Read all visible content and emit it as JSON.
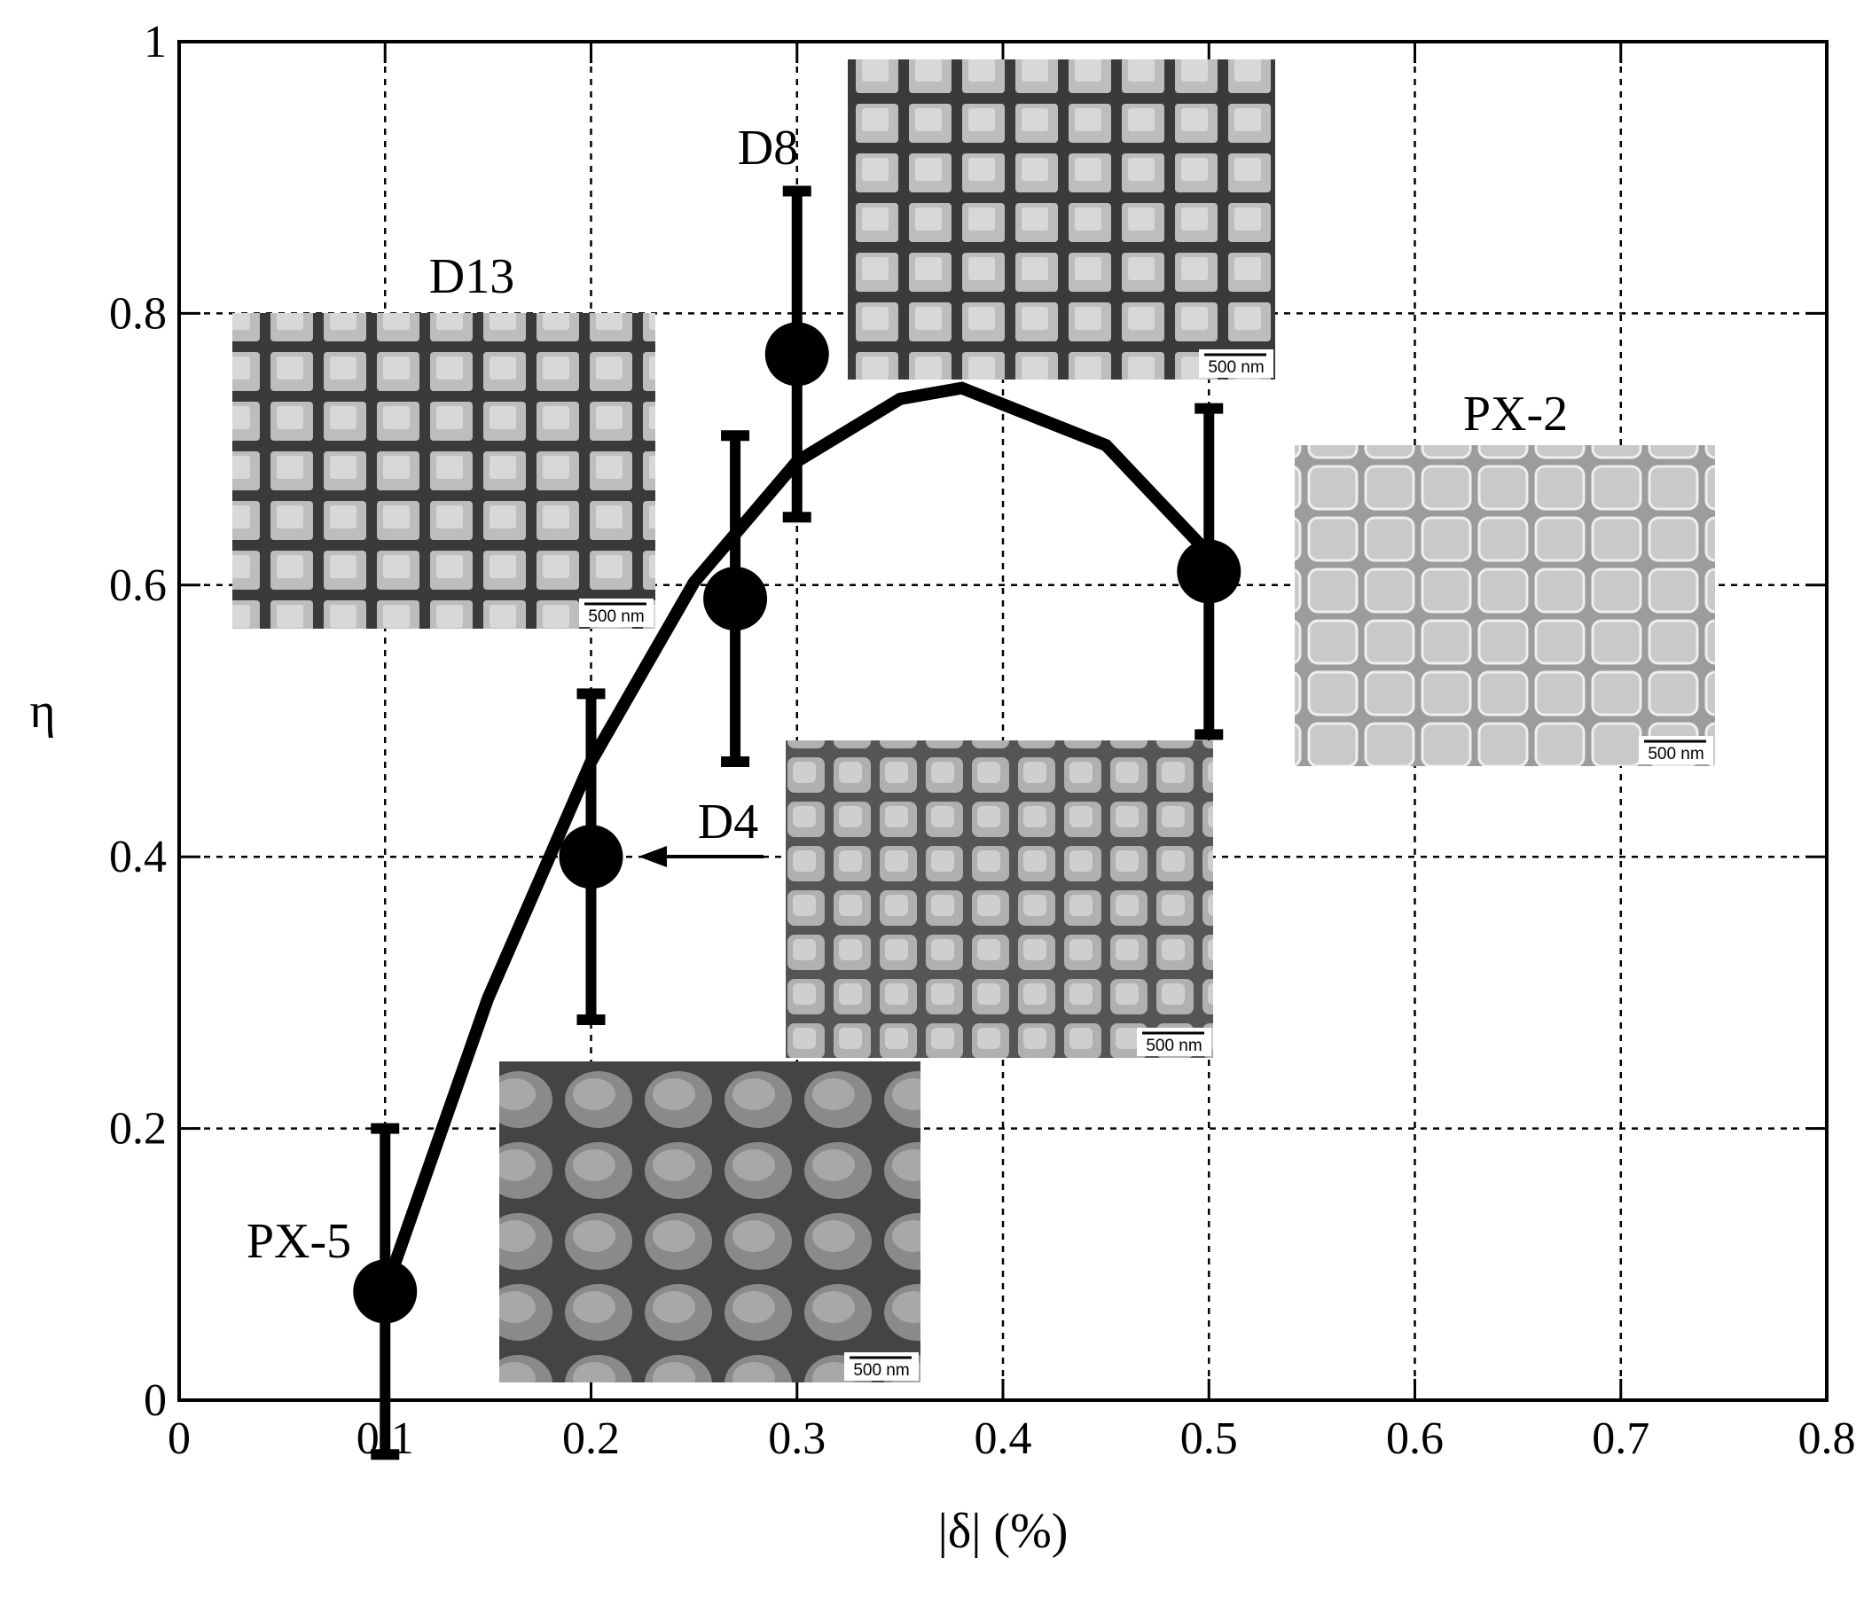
{
  "chart_data": {
    "type": "scatter",
    "x_label": "|δ| (%)",
    "y_label": "η",
    "xlim": [
      0,
      0.8
    ],
    "ylim": [
      0,
      1
    ],
    "xticks": [
      0,
      0.1,
      0.2,
      0.3,
      0.4,
      0.5,
      0.6,
      0.7,
      0.8
    ],
    "yticks": [
      0,
      0.2,
      0.4,
      0.6,
      0.8,
      1
    ],
    "grid": true,
    "series": [
      {
        "color": "#000000",
        "x": [
          0.1,
          0.2,
          0.27,
          0.3,
          0.5
        ],
        "values": [
          0.08,
          0.4,
          0.59,
          0.77,
          0.61
        ],
        "errors": [
          0.12,
          0.12,
          0.12,
          0.12,
          0.12
        ]
      }
    ],
    "curve": {
      "color": "#000000",
      "x": [
        0.1,
        0.15,
        0.2,
        0.25,
        0.3,
        0.35,
        0.38,
        0.45,
        0.5
      ],
      "values": [
        0.08,
        0.296,
        0.47,
        0.602,
        0.691,
        0.737,
        0.745,
        0.703,
        0.623
      ]
    },
    "insets": [
      {
        "label": "D13",
        "scale_bar": "500 nm"
      },
      {
        "label": "D8",
        "scale_bar": "500 nm"
      },
      {
        "label": "PX-2",
        "scale_bar": "500 nm"
      },
      {
        "label": "D4",
        "scale_bar": "500 nm"
      },
      {
        "label": "PX-5",
        "scale_bar": "500 nm"
      }
    ]
  }
}
